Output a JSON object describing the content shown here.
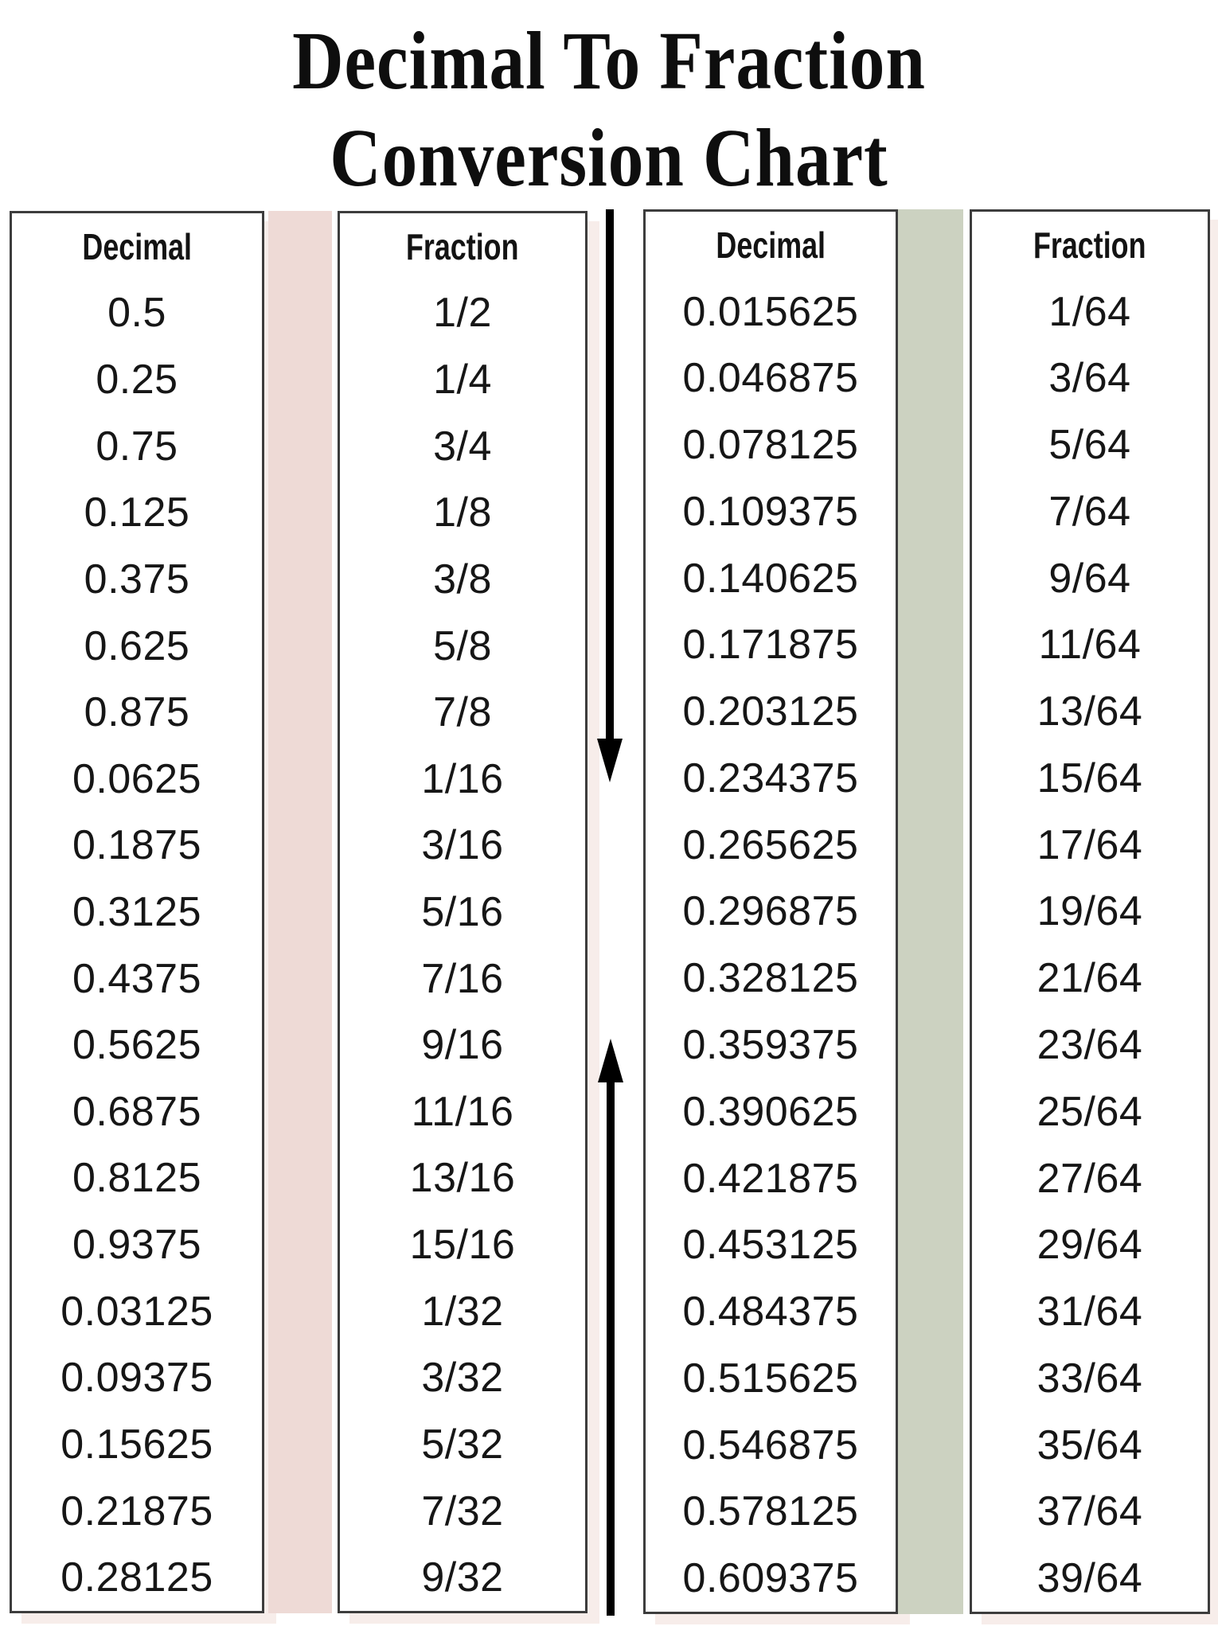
{
  "title": {
    "line1": "Decimal To Fraction",
    "line2": "Conversion Chart"
  },
  "left_table": {
    "decimal_header": "Decimal",
    "fraction_header": "Fraction",
    "decimals": [
      "0.5",
      "0.25",
      "0.75",
      "0.125",
      "0.375",
      "0.625",
      "0.875",
      "0.0625",
      "0.1875",
      "0.3125",
      "0.4375",
      "0.5625",
      "0.6875",
      "0.8125",
      "0.9375",
      "0.03125",
      "0.09375",
      "0.15625",
      "0.21875",
      "0.28125"
    ],
    "fractions": [
      "1/2",
      "1/4",
      "3/4",
      "1/8",
      "3/8",
      "5/8",
      "7/8",
      "1/16",
      "3/16",
      "5/16",
      "7/16",
      "9/16",
      "11/16",
      "13/16",
      "15/16",
      "1/32",
      "3/32",
      "5/32",
      "7/32",
      "9/32"
    ]
  },
  "right_table": {
    "decimal_header": "Decimal",
    "fraction_header": "Fraction",
    "decimals": [
      "0.015625",
      "0.046875",
      "0.078125",
      "0.109375",
      "0.140625",
      "0.171875",
      "0.203125",
      "0.234375",
      "0.265625",
      "0.296875",
      "0.328125",
      "0.359375",
      "0.390625",
      "0.421875",
      "0.453125",
      "0.484375",
      "0.515625",
      "0.546875",
      "0.578125",
      "0.609375"
    ],
    "fractions": [
      "1/64",
      "3/64",
      "5/64",
      "7/64",
      "9/64",
      "11/64",
      "13/64",
      "15/64",
      "17/64",
      "19/64",
      "21/64",
      "23/64",
      "25/64",
      "27/64",
      "29/64",
      "31/64",
      "33/64",
      "35/64",
      "37/64",
      "39/64"
    ]
  },
  "icons": {
    "down_arrow": "down-arrow-icon",
    "up_arrow": "up-arrow-icon"
  },
  "colors": {
    "pink_stripe": "#eedad6",
    "green_stripe": "#ccd2c1",
    "border": "#3d3d3d",
    "arrow": "#000000",
    "box_shadow": "#f7edea",
    "text": "#161616",
    "background": "#ffffff"
  }
}
